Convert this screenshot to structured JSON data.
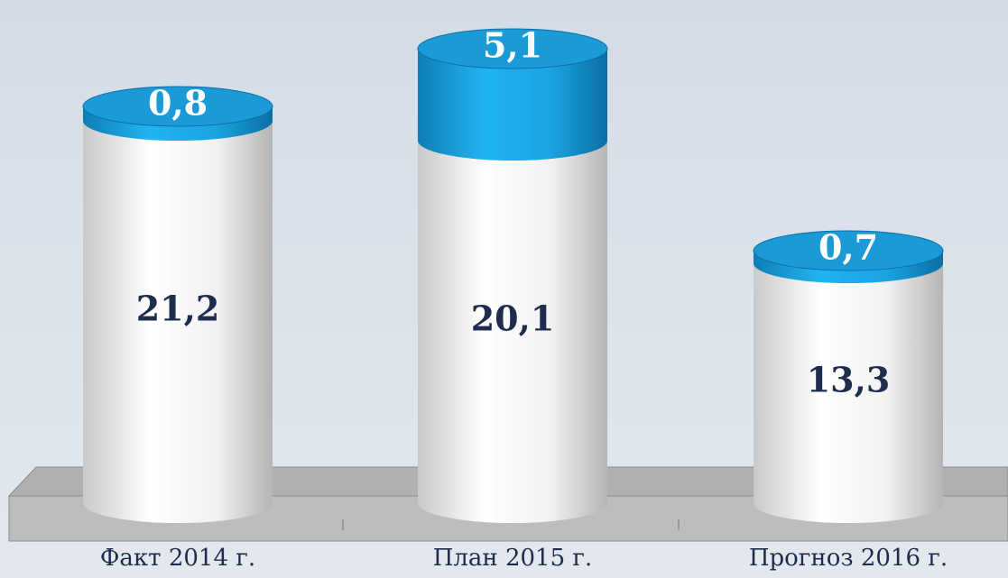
{
  "chart_data": {
    "type": "bar",
    "stacked": true,
    "categories": [
      "Факт 2014 г.",
      "План 2015 г.",
      "Прогноз 2016 г."
    ],
    "series": [
      {
        "color": "#ffffff",
        "values": [
          21.2,
          20.1,
          13.3
        ],
        "value_labels": [
          "21,2",
          "20,1",
          "13,3"
        ]
      },
      {
        "color": "#1a9ad6",
        "values": [
          0.8,
          5.1,
          0.7
        ],
        "value_labels": [
          "0,8",
          "5,1",
          "0,7"
        ]
      }
    ],
    "ylim": [
      0,
      26
    ]
  }
}
